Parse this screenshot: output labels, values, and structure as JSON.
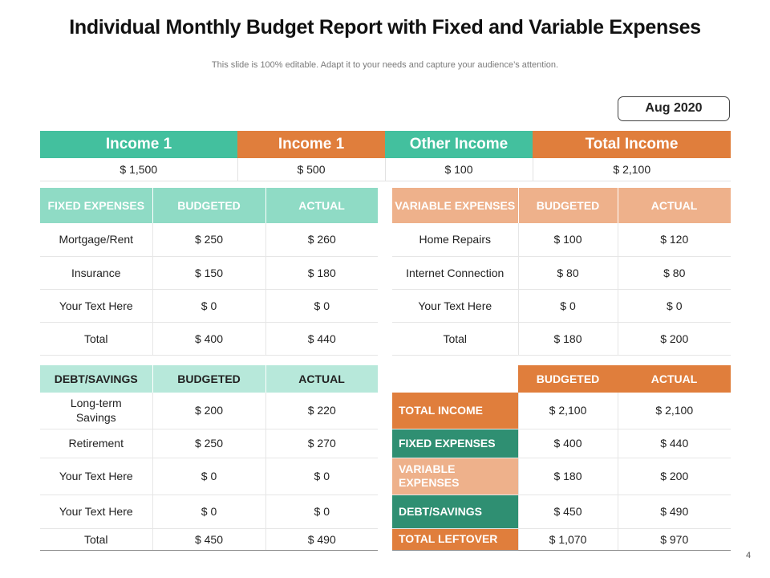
{
  "header": {
    "title": "Individual Monthly Budget Report with Fixed and Variable Expenses",
    "subtitle": "This slide is 100% editable. Adapt it to your needs and capture your audience’s attention.",
    "date": "Aug 2020",
    "page_number": "4"
  },
  "income": {
    "headers": [
      "Income 1",
      "Income 1",
      "Other Income",
      "Total Income"
    ],
    "values": [
      "$ 1,500",
      "$ 500",
      "$ 100",
      "$ 2,100"
    ]
  },
  "fixed_expenses": {
    "headers": [
      "FIXED EXPENSES",
      "BUDGETED",
      "ACTUAL"
    ],
    "rows": [
      [
        "Mortgage/Rent",
        "$ 250",
        "$ 260"
      ],
      [
        "Insurance",
        "$ 150",
        "$ 180"
      ],
      [
        "Your Text Here",
        "$ 0",
        "$ 0"
      ],
      [
        "Total",
        "$ 400",
        "$ 440"
      ]
    ]
  },
  "variable_expenses": {
    "headers": [
      "VARIABLE EXPENSES",
      "BUDGETED",
      "ACTUAL"
    ],
    "rows": [
      [
        "Home Repairs",
        "$ 100",
        "$ 120"
      ],
      [
        "Internet  Connection",
        "$ 80",
        "$ 80"
      ],
      [
        "Your Text Here",
        "$ 0",
        "$ 0"
      ],
      [
        "Total",
        "$ 180",
        "$ 200"
      ]
    ]
  },
  "debt_savings": {
    "headers": [
      "DEBT/SAVINGS",
      "BUDGETED",
      "ACTUAL"
    ],
    "rows": [
      [
        "Long-term Savings",
        "$ 200",
        "$ 220"
      ],
      [
        "Retirement",
        "$ 250",
        "$ 270"
      ],
      [
        "Your Text Here",
        "$ 0",
        "$ 0"
      ],
      [
        "Your Text Here",
        "$ 0",
        "$ 0"
      ],
      [
        "Total",
        "$ 450",
        "$ 490"
      ]
    ]
  },
  "summary": {
    "headers": [
      "",
      "BUDGETED",
      "ACTUAL"
    ],
    "rows": [
      [
        "TOTAL INCOME",
        "$ 2,100",
        "$ 2,100"
      ],
      [
        "FIXED EXPENSES",
        "$ 400",
        "$ 440"
      ],
      [
        "VARIABLE EXPENSES",
        "$ 180",
        "$ 200"
      ],
      [
        "DEBT/SAVINGS",
        "$ 450",
        "$ 490"
      ],
      [
        "TOTAL LEFTOVER",
        "$ 1,070",
        "$ 970"
      ]
    ]
  }
}
